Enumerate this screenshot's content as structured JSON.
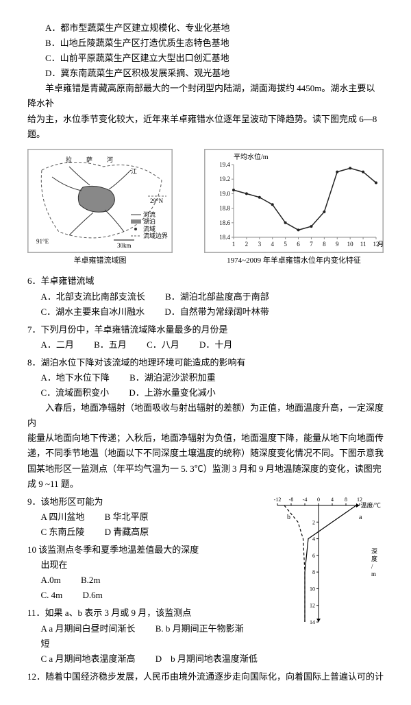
{
  "optionsABCD": {
    "A": "A．都市型蔬菜生产区建立规模化、专业化基地",
    "B": "B．山地丘陵蔬菜生产区打造优质生态特色基地",
    "C": "C．山前平原蔬菜生产区建立大型出口创汇基地",
    "D": "D．冀东南蔬菜生产区积极发展采摘、观光基地"
  },
  "intro1": "羊卓雍错是青藏高原南部最大的一个封闭型内陆湖，湖面海拔约 4450m。湖水主要以降水补",
  "intro2": "给为主，水位季节变化较大，近年来羊卓雍错水位逐年呈波动下降趋势。读下图完成 6—8 题。",
  "map": {
    "caption": "羊卓雍错流域图",
    "legend": [
      "河流",
      "湖泊",
      "流域",
      "流域边界"
    ],
    "lat": "29°N",
    "lon": "91°E",
    "scale": "30km"
  },
  "chart": {
    "caption": "1974~2009 年羊卓雍错水位年内变化特征",
    "ylabel": "平均水位/m",
    "yticks": [
      "19.4",
      "19.2",
      "19.0",
      "18.8",
      "18.6",
      "18.4"
    ],
    "xticks": [
      "1",
      "2",
      "3",
      "4",
      "5",
      "6",
      "7",
      "8",
      "9",
      "10",
      "11",
      "12"
    ],
    "xlabel": "月份",
    "values": [
      19.05,
      19.0,
      18.95,
      18.85,
      18.6,
      18.5,
      18.55,
      18.75,
      19.3,
      19.35,
      19.3,
      19.15
    ],
    "line_color": "#222222",
    "grid_color": "#888888",
    "bg": "#ffffff"
  },
  "q6": {
    "stem": "6．羊卓雍错流域",
    "A": "A．北部支流比南部支流长",
    "B": "B．湖泊北部盐度高于南部",
    "C": "C．湖水主要来自冰川融水",
    "D": "D．自然带为常绿阔叶林带"
  },
  "q7": {
    "stem": "7．下列月份中，羊卓雍错流域降水量最多的月份是",
    "A": "A．二月",
    "B": "B．五月",
    "C": "C．八月",
    "D": "D．十月"
  },
  "q8": {
    "stem": "8．湖泊水位下降对该流域的地理环境可能造成的影响有",
    "A": "A．地下水位下降",
    "B": "B．湖泊泥沙淤积加重",
    "C": "C．流域面积变小",
    "D": "D．上游水量变化减小"
  },
  "para1": "入春后，地面净辐射（地面吸收与射出辐射的差额）为正值，地面温度升高，一定深度内",
  "para2": "能量从地面向地下传递；入秋后，地面净辐射为负值，地面温度下降，能量从地下向地面传递，不同季节地温（地面以下不同深度土壤温度的统称）随深度变化情况不同。下图示意我国某地形区一监测点（年平均气温为一 5. 3℃）监测 3 月和 9 月地温随深度的变化，读图完",
  "para3": "成 9 ~11 题。",
  "q9": {
    "stem": "9．该地形区可能为",
    "A": "A 四川盆地",
    "B": "B 华北平原",
    "C": "C 东南丘陵",
    "D": "D 青藏高原"
  },
  "q10": {
    "stem": "10 该监测点冬季和夏季地温差值最大的深度",
    "sub": "出现在",
    "A": "A.0m",
    "B": "B.2m",
    "C": "C. 4m",
    "D": "D.6m"
  },
  "q11": {
    "stem": "11．如果 a、b 表示 3 月或 9 月，该监测点",
    "A": "A a 月期间白昼时间渐长",
    "B": "B. b 月期间正午物影渐短",
    "C": "C a 月期间地表温度渐高",
    "D": "D　b 月期间地表温度渐低"
  },
  "q12": "12．随着中国经济稳步发展，人民币由境外流通逐步走向国际化，向着国际上普遍认可的计",
  "depth_chart": {
    "xlabel": "温度/℃",
    "ylabel": "深度/m",
    "xticks": [
      "-12",
      "-8",
      "-4",
      "0",
      "4",
      "8",
      "12"
    ],
    "yticks": [
      "0",
      "2",
      "4",
      "6",
      "8",
      "10",
      "12",
      "14"
    ],
    "curve_a": {
      "label": "a",
      "pts": [
        [
          11,
          0
        ],
        [
          4,
          2
        ],
        [
          -3,
          4
        ],
        [
          -4,
          8
        ],
        [
          -4,
          14
        ]
      ]
    },
    "curve_b": {
      "label": "b",
      "pts": [
        [
          -10,
          0
        ],
        [
          -6,
          2
        ],
        [
          -4.5,
          4
        ],
        [
          -4,
          8
        ],
        [
          -4,
          14
        ]
      ]
    },
    "line_color": "#000000",
    "dash_color": "#000000"
  }
}
